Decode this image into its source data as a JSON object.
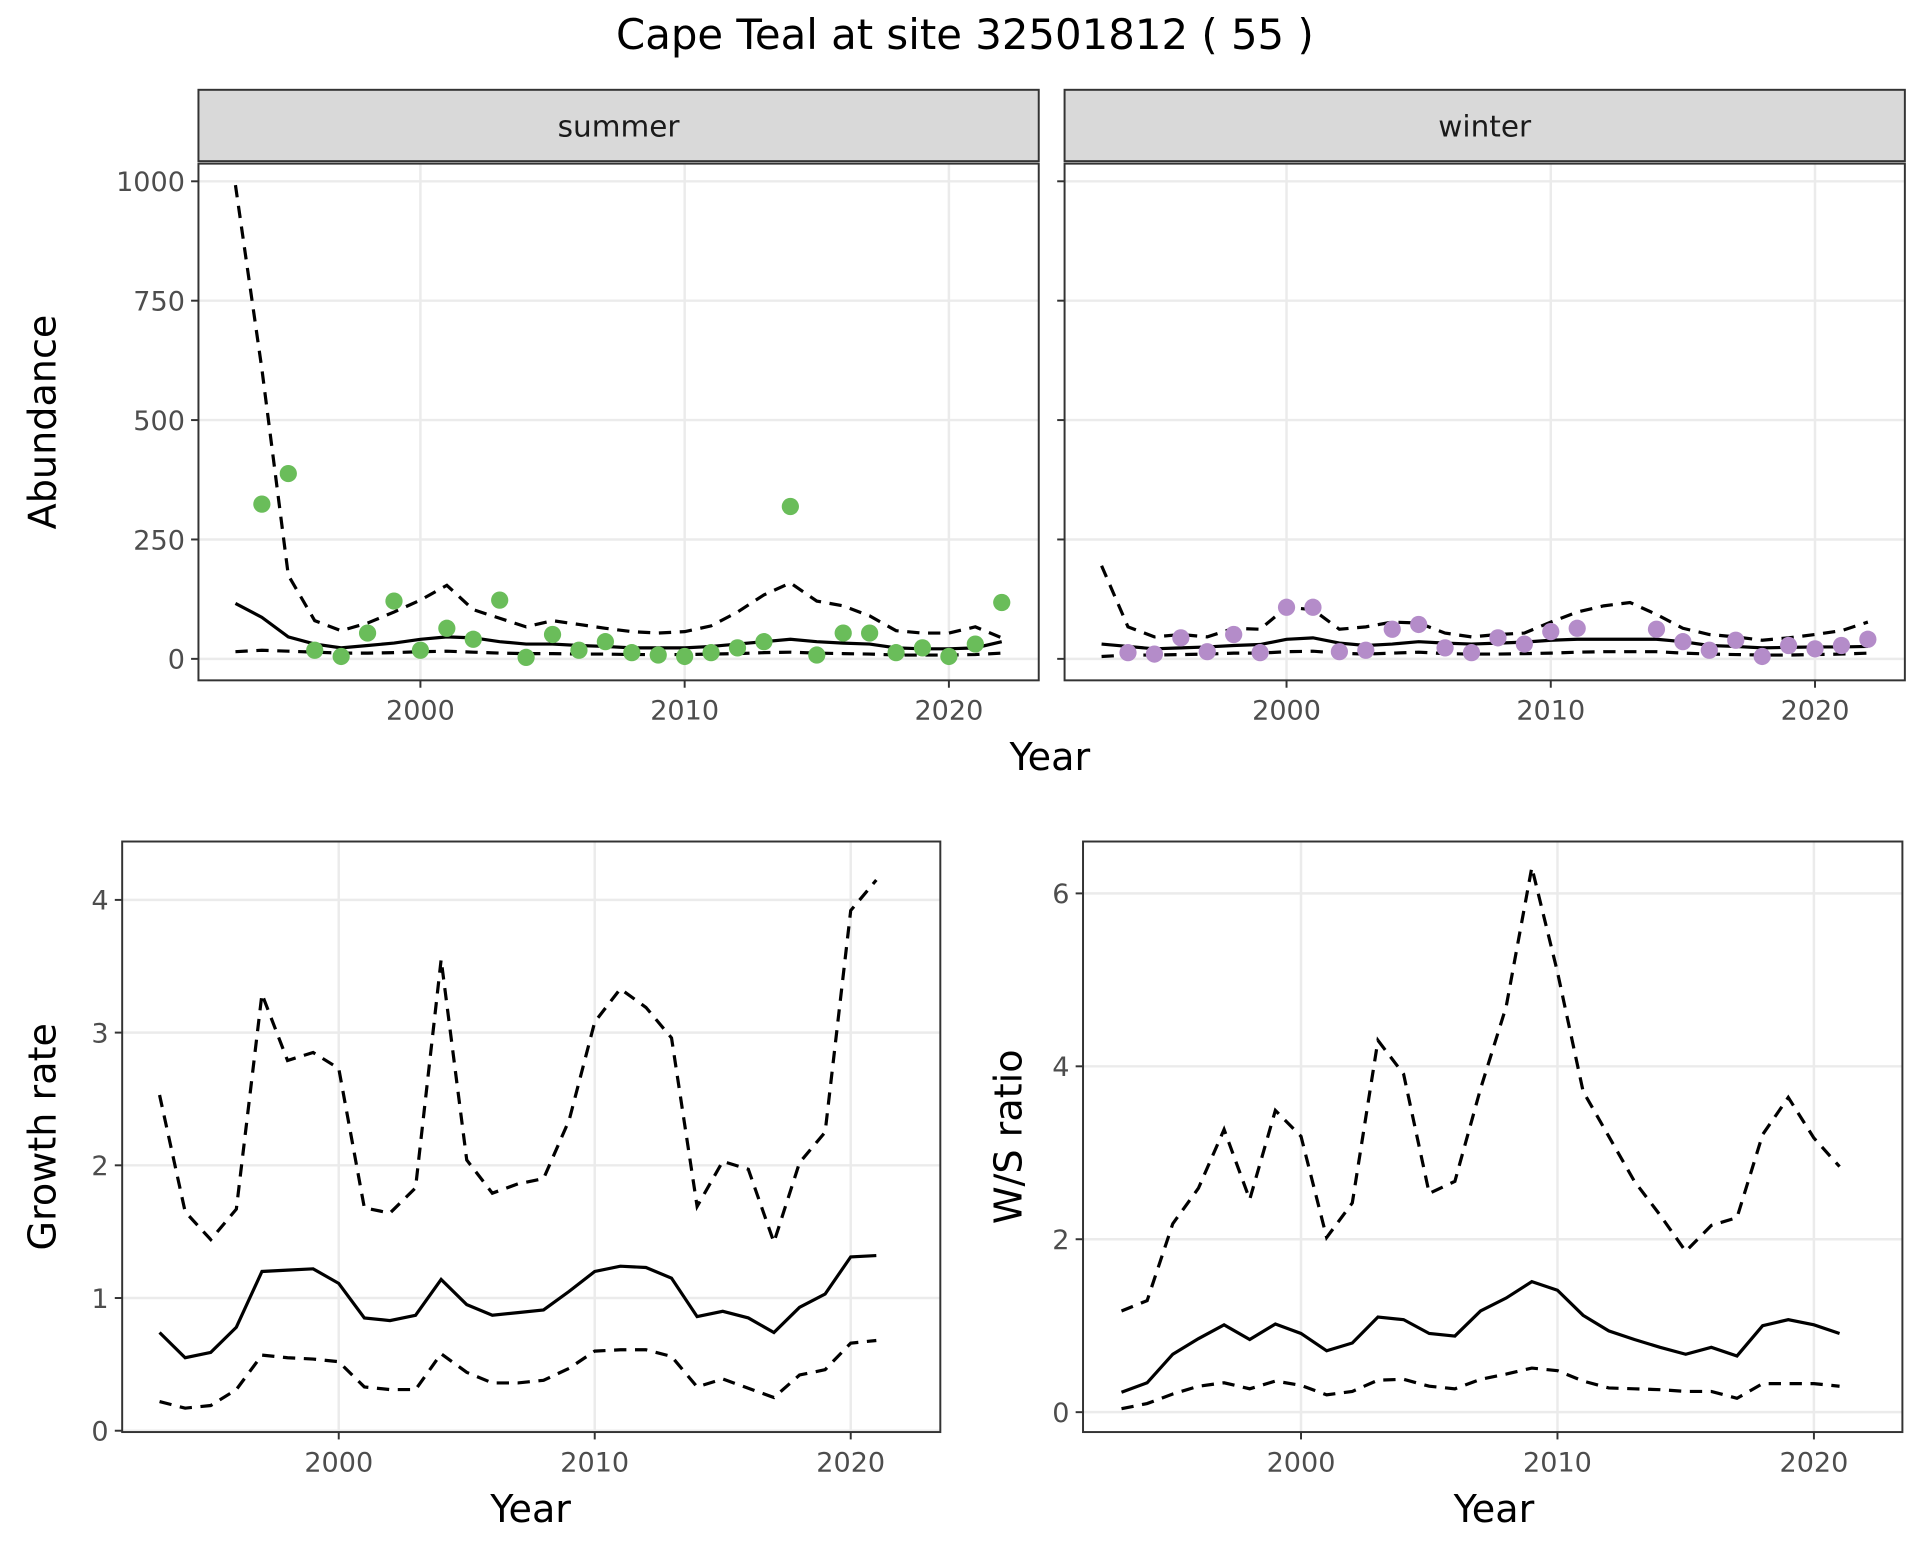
{
  "title": "Cape Teal at site 32501812 ( 55 )",
  "chart_data": [
    {
      "type": "line",
      "strip": "summer",
      "xlabel": "Year",
      "ylabel": "Abundance",
      "x": [
        1993,
        1994,
        1995,
        1996,
        1997,
        1998,
        1999,
        2000,
        2001,
        2002,
        2003,
        2004,
        2005,
        2006,
        2007,
        2008,
        2009,
        2010,
        2011,
        2012,
        2013,
        2014,
        2015,
        2016,
        2017,
        2018,
        2019,
        2020,
        2021,
        2022
      ],
      "xlim": [
        1991.6,
        2023.4
      ],
      "xticks": [
        2000,
        2010,
        2020
      ],
      "ylim": [
        -45,
        1037
      ],
      "yticks": [
        0,
        250,
        500,
        750,
        1000
      ],
      "ytick_labels": true,
      "grid": true,
      "series": [
        {
          "type": "line",
          "dash": true,
          "color": "#000000",
          "values": [
            992,
            607,
            175,
            80,
            59,
            75,
            98,
            123,
            154,
            103,
            85,
            67,
            80,
            72,
            64,
            57,
            54,
            57,
            69,
            98,
            134,
            159,
            121,
            111,
            90,
            59,
            54,
            54,
            67,
            44
          ]
        },
        {
          "type": "line",
          "dash": false,
          "color": "#000000",
          "values": [
            116,
            87,
            46,
            31,
            23,
            28,
            33,
            41,
            46,
            44,
            36,
            31,
            31,
            28,
            26,
            23,
            23,
            23,
            26,
            31,
            36,
            41,
            36,
            33,
            31,
            23,
            21,
            21,
            23,
            36
          ]
        },
        {
          "type": "line",
          "dash": true,
          "color": "#000000",
          "values": [
            15,
            18,
            16,
            14,
            12,
            12,
            13,
            15,
            16,
            14,
            12,
            11,
            11,
            10,
            10,
            9,
            9,
            9,
            10,
            11,
            13,
            14,
            12,
            11,
            10,
            8,
            8,
            8,
            9,
            12
          ]
        },
        {
          "type": "scatter",
          "color": "#6abd5a",
          "values": [
            null,
            324,
            388,
            18,
            5,
            54,
            121,
            18,
            64,
            41,
            123,
            3,
            51,
            18,
            36,
            13,
            8,
            5,
            13,
            23,
            36,
            319,
            8,
            54,
            54,
            13,
            23,
            5,
            31,
            118
          ]
        }
      ]
    },
    {
      "type": "line",
      "strip": "winter",
      "x": [
        1993,
        1994,
        1995,
        1996,
        1997,
        1998,
        1999,
        2000,
        2001,
        2002,
        2003,
        2004,
        2005,
        2006,
        2007,
        2008,
        2009,
        2010,
        2011,
        2012,
        2013,
        2014,
        2015,
        2016,
        2017,
        2018,
        2019,
        2020,
        2021,
        2022
      ],
      "xlim": [
        1991.6,
        2023.4
      ],
      "xticks": [
        2000,
        2010,
        2020
      ],
      "ylim": [
        -45,
        1037
      ],
      "yticks": [
        0,
        250,
        500,
        750,
        1000
      ],
      "ytick_labels": false,
      "grid": true,
      "series": [
        {
          "type": "line",
          "dash": true,
          "color": "#000000",
          "values": [
            195,
            67,
            46,
            51,
            46,
            64,
            62,
            108,
            103,
            62,
            67,
            77,
            75,
            54,
            46,
            51,
            54,
            77,
            98,
            111,
            118,
            93,
            64,
            51,
            46,
            39,
            44,
            51,
            59,
            77
          ]
        },
        {
          "type": "line",
          "dash": false,
          "color": "#000000",
          "values": [
            31,
            26,
            21,
            23,
            25,
            28,
            30,
            41,
            44,
            33,
            28,
            31,
            36,
            33,
            31,
            33,
            35,
            39,
            41,
            41,
            41,
            41,
            36,
            28,
            26,
            23,
            24,
            25,
            25,
            26
          ]
        },
        {
          "type": "line",
          "dash": true,
          "color": "#000000",
          "values": [
            5,
            8,
            8,
            9,
            10,
            12,
            12,
            15,
            16,
            12,
            10,
            12,
            14,
            11,
            10,
            10,
            11,
            12,
            14,
            15,
            15,
            15,
            12,
            10,
            9,
            8,
            8,
            9,
            10,
            12
          ]
        },
        {
          "type": "scatter",
          "color": "#b48cc9",
          "values": [
            null,
            13,
            10,
            44,
            15,
            51,
            13,
            108,
            108,
            15,
            18,
            62,
            72,
            23,
            13,
            44,
            31,
            57,
            64,
            null,
            null,
            62,
            36,
            18,
            39,
            5,
            28,
            21,
            28,
            41
          ]
        }
      ]
    },
    {
      "type": "line",
      "xlabel": "Year",
      "ylabel": "Growth rate",
      "x": [
        1993,
        1994,
        1995,
        1996,
        1997,
        1998,
        1999,
        2000,
        2001,
        2002,
        2003,
        2004,
        2005,
        2006,
        2007,
        2008,
        2009,
        2010,
        2011,
        2012,
        2013,
        2014,
        2015,
        2016,
        2017,
        2018,
        2019,
        2020,
        2021
      ],
      "xlim": [
        1991.54,
        2023.5
      ],
      "xticks": [
        2000,
        2010,
        2020
      ],
      "ylim": [
        -0.01,
        4.44
      ],
      "yticks": [
        0,
        1,
        2,
        3,
        4
      ],
      "ytick_labels": true,
      "grid": true,
      "series": [
        {
          "type": "line",
          "dash": true,
          "color": "#000000",
          "values": [
            2.53,
            1.65,
            1.44,
            1.67,
            3.29,
            2.79,
            2.85,
            2.73,
            1.68,
            1.64,
            1.83,
            3.55,
            2.04,
            1.79,
            1.86,
            1.9,
            2.34,
            3.08,
            3.33,
            3.19,
            2.96,
            1.69,
            2.03,
            1.97,
            1.42,
            2.02,
            2.25,
            3.92,
            4.15
          ]
        },
        {
          "type": "line",
          "dash": false,
          "color": "#000000",
          "values": [
            0.74,
            0.55,
            0.59,
            0.78,
            1.2,
            1.21,
            1.22,
            1.11,
            0.85,
            0.83,
            0.87,
            1.14,
            0.95,
            0.87,
            0.89,
            0.91,
            1.05,
            1.2,
            1.24,
            1.23,
            1.15,
            0.86,
            0.9,
            0.85,
            0.74,
            0.93,
            1.03,
            1.31,
            1.32
          ]
        },
        {
          "type": "line",
          "dash": true,
          "color": "#000000",
          "values": [
            0.22,
            0.17,
            0.19,
            0.31,
            0.57,
            0.55,
            0.54,
            0.52,
            0.33,
            0.31,
            0.31,
            0.58,
            0.44,
            0.36,
            0.36,
            0.38,
            0.47,
            0.6,
            0.61,
            0.61,
            0.56,
            0.33,
            0.39,
            0.32,
            0.25,
            0.42,
            0.46,
            0.66,
            0.68
          ]
        }
      ]
    },
    {
      "type": "line",
      "xlabel": "Year",
      "ylabel": "W/S ratio",
      "x": [
        1993,
        1994,
        1995,
        1996,
        1997,
        1998,
        1999,
        2000,
        2001,
        2002,
        2003,
        2004,
        2005,
        2006,
        2007,
        2008,
        2009,
        2010,
        2011,
        2012,
        2013,
        2014,
        2015,
        2016,
        2017,
        2018,
        2019,
        2020,
        2021
      ],
      "xlim": [
        1991.5,
        2023.45
      ],
      "xticks": [
        2000,
        2010,
        2020
      ],
      "ylim": [
        -0.23,
        6.6
      ],
      "yticks": [
        0,
        2,
        4,
        6
      ],
      "ytick_labels": true,
      "grid": true,
      "series": [
        {
          "type": "line",
          "dash": true,
          "color": "#000000",
          "values": [
            1.17,
            1.29,
            2.18,
            2.59,
            3.27,
            2.46,
            3.49,
            3.19,
            2.02,
            2.42,
            4.3,
            3.91,
            2.53,
            2.67,
            3.74,
            4.69,
            6.3,
            5.09,
            3.71,
            3.19,
            2.67,
            2.28,
            1.86,
            2.16,
            2.25,
            3.21,
            3.64,
            3.17,
            2.84
          ]
        },
        {
          "type": "line",
          "dash": false,
          "color": "#000000",
          "values": [
            0.23,
            0.34,
            0.67,
            0.85,
            1.01,
            0.84,
            1.02,
            0.91,
            0.71,
            0.8,
            1.1,
            1.07,
            0.91,
            0.88,
            1.17,
            1.32,
            1.51,
            1.41,
            1.12,
            0.94,
            0.84,
            0.75,
            0.67,
            0.75,
            0.65,
            1.0,
            1.07,
            1.01,
            0.91
          ]
        },
        {
          "type": "line",
          "dash": true,
          "color": "#000000",
          "values": [
            0.04,
            0.1,
            0.21,
            0.3,
            0.34,
            0.27,
            0.36,
            0.31,
            0.2,
            0.24,
            0.37,
            0.38,
            0.3,
            0.27,
            0.38,
            0.44,
            0.51,
            0.48,
            0.36,
            0.28,
            0.27,
            0.26,
            0.24,
            0.24,
            0.16,
            0.33,
            0.33,
            0.33,
            0.3
          ]
        }
      ]
    }
  ]
}
